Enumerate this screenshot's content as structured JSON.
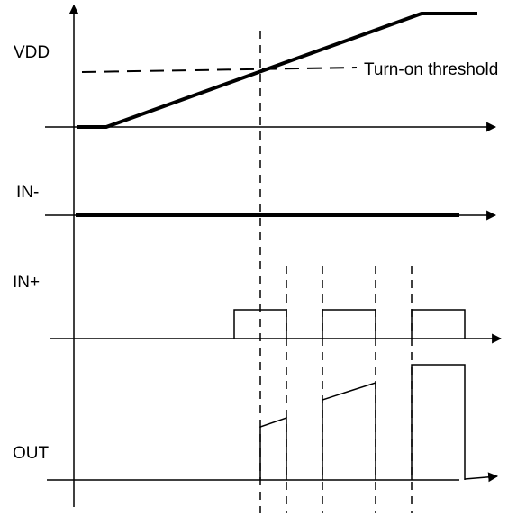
{
  "signals": {
    "vdd": "VDD",
    "in_minus": "IN-",
    "in_plus": "IN+",
    "out": "OUT"
  },
  "annotations": {
    "threshold": "Turn-on threshold"
  }
}
